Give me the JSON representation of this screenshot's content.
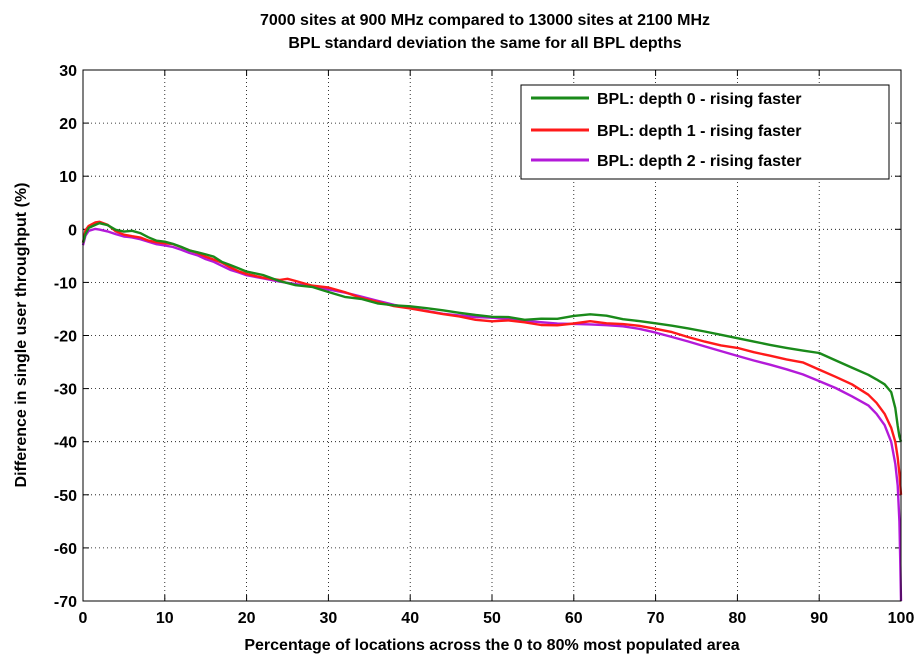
{
  "chart_data": {
    "type": "line",
    "title": "7000 sites at 900 MHz compared to 13000 sites at 2100 MHz",
    "subtitle": "BPL standard deviation the same for all BPL depths",
    "xlabel": "Percentage of locations across the 0 to 80% most populated area",
    "ylabel": "Difference in single user throughput (%)",
    "xlim": [
      0,
      100
    ],
    "ylim": [
      -70,
      30
    ],
    "xticks": [
      "0",
      "10",
      "20",
      "30",
      "40",
      "50",
      "60",
      "70",
      "80",
      "90",
      "100"
    ],
    "yticks": [
      "30",
      "20",
      "10",
      "0",
      "-10",
      "-20",
      "-30",
      "-40",
      "-50",
      "-60",
      "-70"
    ],
    "grid": true,
    "legend_position": "top-right",
    "series": [
      {
        "name": "BPL: depth 0 - rising faster",
        "color": "#1a8a1a",
        "points": [
          [
            0,
            -2.5
          ],
          [
            0.3,
            -1
          ],
          [
            0.7,
            0
          ],
          [
            1.5,
            0.5
          ],
          [
            2,
            0.8
          ],
          [
            3,
            0.5
          ],
          [
            4,
            -0.3
          ],
          [
            5,
            -0.5
          ],
          [
            6,
            -0.2
          ],
          [
            7,
            -0.5
          ],
          [
            8,
            -1.2
          ],
          [
            9,
            -1.8
          ],
          [
            10,
            -2
          ],
          [
            11,
            -2.5
          ],
          [
            12,
            -3.2
          ],
          [
            13,
            -4
          ],
          [
            14,
            -4.5
          ],
          [
            15,
            -5
          ],
          [
            16,
            -5.5
          ],
          [
            17,
            -6.5
          ],
          [
            18,
            -7
          ],
          [
            19,
            -7.5
          ],
          [
            20,
            -8
          ],
          [
            22,
            -8.5
          ],
          [
            24,
            -9.5
          ],
          [
            26,
            -10.2
          ],
          [
            28,
            -10.5
          ],
          [
            30,
            -11.5
          ],
          [
            32,
            -12.5
          ],
          [
            34,
            -13
          ],
          [
            36,
            -14
          ],
          [
            38,
            -14.5
          ],
          [
            40,
            -14.8
          ],
          [
            42,
            -15.2
          ],
          [
            44,
            -15.6
          ],
          [
            46,
            -16
          ],
          [
            48,
            -16.3
          ],
          [
            50,
            -16.5
          ],
          [
            52,
            -16.4
          ],
          [
            54,
            -16.8
          ],
          [
            56,
            -16.5
          ],
          [
            58,
            -16.5
          ],
          [
            60,
            -16
          ],
          [
            62,
            -15.8
          ],
          [
            64,
            -16.2
          ],
          [
            66,
            -17
          ],
          [
            68,
            -17.5
          ],
          [
            70,
            -18
          ],
          [
            72,
            -18.5
          ],
          [
            74,
            -19
          ],
          [
            76,
            -19.5
          ],
          [
            78,
            -20
          ],
          [
            80,
            -20.5
          ],
          [
            82,
            -21
          ],
          [
            84,
            -21.5
          ],
          [
            86,
            -22
          ],
          [
            88,
            -22.5
          ],
          [
            90,
            -23
          ],
          [
            92,
            -24.5
          ],
          [
            94,
            -26
          ],
          [
            96,
            -27.5
          ],
          [
            97,
            -28.5
          ],
          [
            98,
            -29.5
          ],
          [
            98.8,
            -31
          ],
          [
            99.3,
            -34
          ],
          [
            99.6,
            -37
          ],
          [
            99.8,
            -39
          ],
          [
            100,
            -40
          ]
        ]
      },
      {
        "name": "BPL: depth 1 - rising faster",
        "color": "#ff1a1a",
        "points": [
          [
            0,
            -2.5
          ],
          [
            0.3,
            -0.5
          ],
          [
            0.7,
            0.3
          ],
          [
            1.5,
            1
          ],
          [
            2,
            1.2
          ],
          [
            3,
            0.8
          ],
          [
            4,
            -0.3
          ],
          [
            5,
            -0.8
          ],
          [
            6,
            -1
          ],
          [
            7,
            -1.2
          ],
          [
            8,
            -1.8
          ],
          [
            9,
            -2.2
          ],
          [
            10,
            -2.5
          ],
          [
            11,
            -2.8
          ],
          [
            12,
            -3.5
          ],
          [
            13,
            -4.2
          ],
          [
            14,
            -4.8
          ],
          [
            15,
            -5.5
          ],
          [
            16,
            -6
          ],
          [
            17,
            -6.5
          ],
          [
            18,
            -7.2
          ],
          [
            19,
            -7.8
          ],
          [
            20,
            -8.2
          ],
          [
            22,
            -8.8
          ],
          [
            24,
            -9.2
          ],
          [
            25,
            -9
          ],
          [
            26,
            -9.5
          ],
          [
            28,
            -10.5
          ],
          [
            30,
            -11
          ],
          [
            32,
            -12
          ],
          [
            34,
            -13.2
          ],
          [
            36,
            -14
          ],
          [
            38,
            -14.8
          ],
          [
            40,
            -15.2
          ],
          [
            42,
            -15.6
          ],
          [
            44,
            -16
          ],
          [
            46,
            -16.3
          ],
          [
            48,
            -16.8
          ],
          [
            50,
            -17
          ],
          [
            52,
            -16.8
          ],
          [
            54,
            -17.2
          ],
          [
            56,
            -17.8
          ],
          [
            58,
            -18
          ],
          [
            60,
            -17.8
          ],
          [
            62,
            -17.5
          ],
          [
            64,
            -18
          ],
          [
            66,
            -18.2
          ],
          [
            68,
            -18.5
          ],
          [
            70,
            -19
          ],
          [
            72,
            -19.5
          ],
          [
            74,
            -20.3
          ],
          [
            76,
            -21
          ],
          [
            78,
            -21.6
          ],
          [
            80,
            -22
          ],
          [
            82,
            -22.8
          ],
          [
            84,
            -23.5
          ],
          [
            86,
            -24.3
          ],
          [
            88,
            -25
          ],
          [
            90,
            -26.5
          ],
          [
            92,
            -28
          ],
          [
            94,
            -29.5
          ],
          [
            96,
            -31.5
          ],
          [
            97,
            -33
          ],
          [
            98,
            -35
          ],
          [
            98.8,
            -37.5
          ],
          [
            99.3,
            -40
          ],
          [
            99.6,
            -43
          ],
          [
            99.8,
            -46
          ],
          [
            100,
            -50
          ]
        ]
      },
      {
        "name": "BPL: depth 2 - rising faster",
        "color": "#b31ad9",
        "points": [
          [
            0,
            -3
          ],
          [
            0.3,
            -1.5
          ],
          [
            0.7,
            -0.5
          ],
          [
            1.5,
            0
          ],
          [
            2,
            0
          ],
          [
            3,
            -0.2
          ],
          [
            4,
            -0.6
          ],
          [
            5,
            -1
          ],
          [
            6,
            -1.2
          ],
          [
            7,
            -1.6
          ],
          [
            8,
            -2.2
          ],
          [
            9,
            -2.8
          ],
          [
            10,
            -3.2
          ],
          [
            11,
            -3.6
          ],
          [
            12,
            -4.2
          ],
          [
            13,
            -4.8
          ],
          [
            14,
            -5.2
          ],
          [
            15,
            -5.8
          ],
          [
            16,
            -6.2
          ],
          [
            17,
            -6.8
          ],
          [
            18,
            -7.4
          ],
          [
            19,
            -7.8
          ],
          [
            20,
            -8.3
          ],
          [
            22,
            -8.9
          ],
          [
            24,
            -9.6
          ],
          [
            26,
            -10.2
          ],
          [
            28,
            -10.8
          ],
          [
            30,
            -11.5
          ],
          [
            32,
            -12.2
          ],
          [
            34,
            -13
          ],
          [
            36,
            -13.8
          ],
          [
            38,
            -14.5
          ],
          [
            40,
            -15
          ],
          [
            42,
            -15.4
          ],
          [
            44,
            -15.8
          ],
          [
            46,
            -16
          ],
          [
            48,
            -16.2
          ],
          [
            50,
            -16.3
          ],
          [
            52,
            -16.6
          ],
          [
            54,
            -17
          ],
          [
            56,
            -17.4
          ],
          [
            58,
            -17.8
          ],
          [
            60,
            -18
          ],
          [
            62,
            -18.2
          ],
          [
            64,
            -18.4
          ],
          [
            66,
            -18.6
          ],
          [
            68,
            -19
          ],
          [
            70,
            -19.6
          ],
          [
            72,
            -20.3
          ],
          [
            74,
            -21
          ],
          [
            76,
            -21.8
          ],
          [
            78,
            -22.6
          ],
          [
            80,
            -23.5
          ],
          [
            82,
            -24.4
          ],
          [
            84,
            -25.3
          ],
          [
            86,
            -26.3
          ],
          [
            88,
            -27.4
          ],
          [
            90,
            -28.8
          ],
          [
            92,
            -30.2
          ],
          [
            94,
            -31.8
          ],
          [
            96,
            -33.5
          ],
          [
            97,
            -35
          ],
          [
            98,
            -37
          ],
          [
            98.8,
            -40
          ],
          [
            99.3,
            -44
          ],
          [
            99.6,
            -48
          ],
          [
            99.8,
            -55
          ],
          [
            99.9,
            -62
          ],
          [
            100,
            -70
          ]
        ]
      }
    ]
  }
}
